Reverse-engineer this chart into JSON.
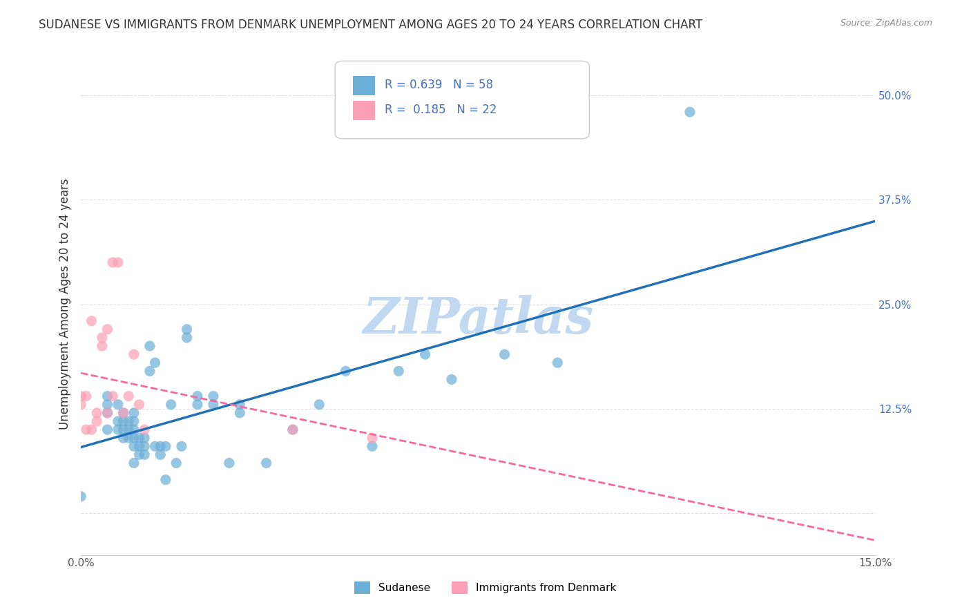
{
  "title": "SUDANESE VS IMMIGRANTS FROM DENMARK UNEMPLOYMENT AMONG AGES 20 TO 24 YEARS CORRELATION CHART",
  "source": "Source: ZipAtlas.com",
  "ylabel": "Unemployment Among Ages 20 to 24 years",
  "xlim": [
    0.0,
    0.15
  ],
  "ylim": [
    -0.05,
    0.55
  ],
  "xticks": [
    0.0,
    0.025,
    0.05,
    0.075,
    0.1,
    0.125,
    0.15
  ],
  "xticklabels": [
    "0.0%",
    "",
    "",
    "",
    "",
    "",
    "15.0%"
  ],
  "yticks_right": [
    0.0,
    0.125,
    0.25,
    0.375,
    0.5
  ],
  "yticklabels_right": [
    "",
    "12.5%",
    "25.0%",
    "37.5%",
    "50.0%"
  ],
  "blue_R": "0.639",
  "blue_N": "58",
  "pink_R": "0.185",
  "pink_N": "22",
  "blue_color": "#6baed6",
  "pink_color": "#fa9fb5",
  "blue_line_color": "#2171b5",
  "pink_line_color": "#f768a1",
  "legend_label_blue": "Sudanese",
  "legend_label_pink": "Immigrants from Denmark",
  "blue_scatter_x": [
    0.0,
    0.005,
    0.005,
    0.005,
    0.005,
    0.007,
    0.007,
    0.007,
    0.008,
    0.008,
    0.008,
    0.008,
    0.009,
    0.009,
    0.009,
    0.01,
    0.01,
    0.01,
    0.01,
    0.01,
    0.01,
    0.011,
    0.011,
    0.011,
    0.012,
    0.012,
    0.012,
    0.013,
    0.013,
    0.014,
    0.014,
    0.015,
    0.015,
    0.016,
    0.016,
    0.017,
    0.018,
    0.019,
    0.02,
    0.02,
    0.022,
    0.022,
    0.025,
    0.025,
    0.028,
    0.03,
    0.03,
    0.035,
    0.04,
    0.045,
    0.05,
    0.055,
    0.06,
    0.065,
    0.07,
    0.08,
    0.09,
    0.115
  ],
  "blue_scatter_y": [
    0.02,
    0.1,
    0.12,
    0.13,
    0.14,
    0.1,
    0.11,
    0.13,
    0.09,
    0.1,
    0.11,
    0.12,
    0.09,
    0.1,
    0.11,
    0.06,
    0.08,
    0.09,
    0.1,
    0.11,
    0.12,
    0.07,
    0.08,
    0.09,
    0.07,
    0.08,
    0.09,
    0.17,
    0.2,
    0.08,
    0.18,
    0.07,
    0.08,
    0.04,
    0.08,
    0.13,
    0.06,
    0.08,
    0.21,
    0.22,
    0.13,
    0.14,
    0.13,
    0.14,
    0.06,
    0.12,
    0.13,
    0.06,
    0.1,
    0.13,
    0.17,
    0.08,
    0.17,
    0.19,
    0.16,
    0.19,
    0.18,
    0.48
  ],
  "pink_scatter_x": [
    0.0,
    0.0,
    0.001,
    0.001,
    0.002,
    0.002,
    0.003,
    0.003,
    0.004,
    0.004,
    0.005,
    0.005,
    0.006,
    0.006,
    0.007,
    0.008,
    0.009,
    0.01,
    0.011,
    0.012,
    0.04,
    0.055
  ],
  "pink_scatter_y": [
    0.13,
    0.14,
    0.1,
    0.14,
    0.1,
    0.23,
    0.11,
    0.12,
    0.2,
    0.21,
    0.12,
    0.22,
    0.14,
    0.3,
    0.3,
    0.12,
    0.14,
    0.19,
    0.13,
    0.1,
    0.1,
    0.09
  ],
  "watermark": "ZIPatlas",
  "watermark_color": "#c0d8f0",
  "background_color": "#ffffff",
  "grid_color": "#e0e0e0"
}
